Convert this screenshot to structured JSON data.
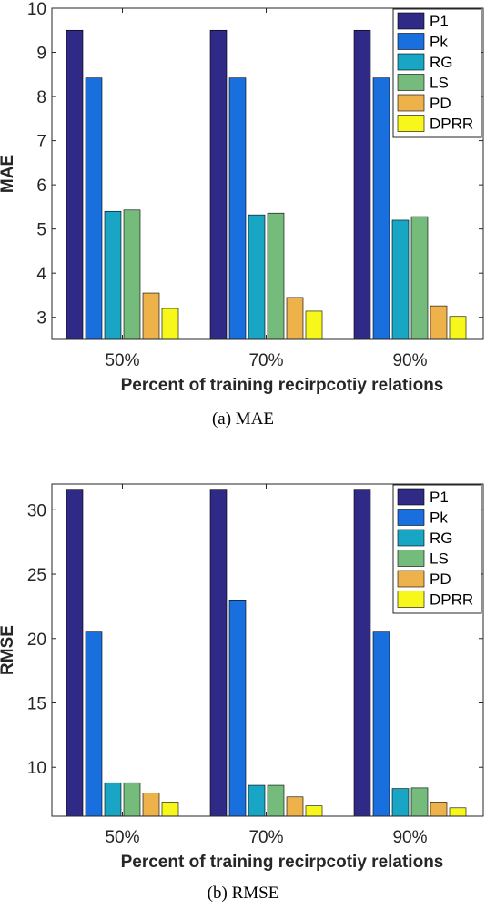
{
  "chart_data": [
    {
      "type": "bar",
      "caption": "(a)  MAE",
      "xlabel": "Percent of training recirpcotiy relations",
      "ylabel": "MAE",
      "ylim": [
        2.5,
        10
      ],
      "yticks": [
        3,
        4,
        5,
        6,
        7,
        8,
        9,
        10
      ],
      "categories": [
        "50%",
        "70%",
        "90%"
      ],
      "legend_position": "top-right",
      "series": [
        {
          "name": "P1",
          "color": "#2e2a85",
          "values": [
            9.5,
            9.5,
            9.5
          ]
        },
        {
          "name": "Pk",
          "color": "#1a6fdf",
          "values": [
            8.42,
            8.42,
            8.42
          ]
        },
        {
          "name": "RG",
          "color": "#18a6c4",
          "values": [
            5.4,
            5.32,
            5.2
          ]
        },
        {
          "name": "LS",
          "color": "#74bb7c",
          "values": [
            5.43,
            5.36,
            5.28
          ]
        },
        {
          "name": "PD",
          "color": "#eeb24a",
          "values": [
            3.55,
            3.45,
            3.26
          ]
        },
        {
          "name": "DPRR",
          "color": "#f7f71c",
          "values": [
            3.2,
            3.14,
            3.02
          ]
        }
      ]
    },
    {
      "type": "bar",
      "caption": "(b)  RMSE",
      "xlabel": "Percent of training recirpcotiy relations",
      "ylabel": "RMSE",
      "ylim": [
        6.2,
        32
      ],
      "yticks": [
        10,
        15,
        20,
        25,
        30
      ],
      "categories": [
        "50%",
        "70%",
        "90%"
      ],
      "legend_position": "top-right",
      "series": [
        {
          "name": "P1",
          "color": "#2e2a85",
          "values": [
            31.6,
            31.6,
            31.6
          ]
        },
        {
          "name": "Pk",
          "color": "#1a6fdf",
          "values": [
            20.5,
            23.0,
            20.5
          ]
        },
        {
          "name": "RG",
          "color": "#18a6c4",
          "values": [
            8.8,
            8.6,
            8.35
          ]
        },
        {
          "name": "LS",
          "color": "#74bb7c",
          "values": [
            8.8,
            8.6,
            8.4
          ]
        },
        {
          "name": "PD",
          "color": "#eeb24a",
          "values": [
            8.0,
            7.7,
            7.3
          ]
        },
        {
          "name": "DPRR",
          "color": "#f7f71c",
          "values": [
            7.3,
            7.0,
            6.85
          ]
        }
      ]
    }
  ]
}
